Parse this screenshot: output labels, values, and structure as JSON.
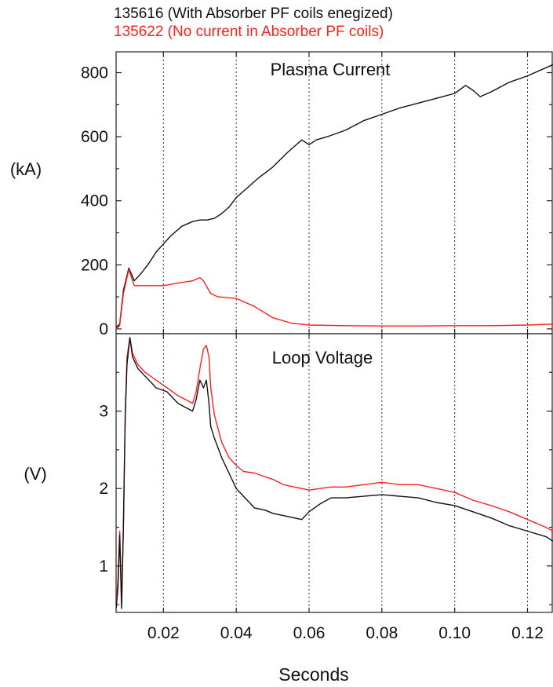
{
  "legend": [
    {
      "label": "135616 (With Absorber PF coils enegized)",
      "color": "#111111"
    },
    {
      "label": "135622 (No current in Absorber PF coils)",
      "color": "#ff2020"
    }
  ],
  "chart_data": [
    {
      "type": "line",
      "title": "Plasma Current",
      "ylabel": "(kA)",
      "xlim": [
        0.007,
        0.127
      ],
      "ylim": [
        -15,
        865
      ],
      "yticks": [
        0,
        200,
        400,
        600,
        800
      ],
      "x_gridlines": [
        0.02,
        0.04,
        0.06,
        0.08,
        0.1,
        0.12
      ],
      "grid": "vertical dotted",
      "series": [
        {
          "name": "135616",
          "color": "#111111",
          "x": [
            0.007,
            0.008,
            0.009,
            0.0105,
            0.012,
            0.014,
            0.016,
            0.018,
            0.02,
            0.022,
            0.025,
            0.028,
            0.03,
            0.032,
            0.034,
            0.036,
            0.038,
            0.04,
            0.043,
            0.046,
            0.05,
            0.054,
            0.058,
            0.06,
            0.062,
            0.065,
            0.07,
            0.075,
            0.08,
            0.085,
            0.09,
            0.095,
            0.1,
            0.103,
            0.105,
            0.107,
            0.11,
            0.115,
            0.12,
            0.127
          ],
          "y": [
            5,
            15,
            120,
            190,
            150,
            175,
            205,
            240,
            265,
            290,
            320,
            335,
            340,
            340,
            345,
            360,
            380,
            410,
            440,
            470,
            505,
            550,
            590,
            575,
            590,
            600,
            620,
            650,
            670,
            690,
            705,
            720,
            735,
            760,
            745,
            725,
            740,
            770,
            790,
            825
          ]
        },
        {
          "name": "135622",
          "color": "#ff2020",
          "x": [
            0.007,
            0.008,
            0.009,
            0.0105,
            0.012,
            0.015,
            0.02,
            0.025,
            0.028,
            0.03,
            0.031,
            0.033,
            0.035,
            0.04,
            0.045,
            0.05,
            0.055,
            0.06,
            0.07,
            0.08,
            0.09,
            0.1,
            0.11,
            0.12,
            0.127
          ],
          "y": [
            0,
            10,
            110,
            185,
            135,
            135,
            135,
            145,
            150,
            160,
            150,
            110,
            100,
            95,
            70,
            35,
            18,
            12,
            10,
            9,
            9,
            10,
            10,
            12,
            15
          ]
        }
      ]
    },
    {
      "type": "line",
      "title": "Loop Voltage",
      "ylabel": "(V)",
      "xlabel": "Seconds",
      "xlim": [
        0.007,
        0.127
      ],
      "ylim": [
        0.4,
        4.0
      ],
      "yticks": [
        1,
        2,
        3
      ],
      "xticks": [
        "0.02",
        "0.04",
        "0.06",
        "0.08",
        "0.10",
        "0.12"
      ],
      "x_gridlines": [
        0.02,
        0.04,
        0.06,
        0.08,
        0.1,
        0.12
      ],
      "grid": "vertical dotted",
      "series": [
        {
          "name": "135616",
          "color": "#111111",
          "x": [
            0.007,
            0.0075,
            0.008,
            0.0085,
            0.009,
            0.0095,
            0.01,
            0.0108,
            0.0115,
            0.013,
            0.015,
            0.018,
            0.021,
            0.024,
            0.026,
            0.028,
            0.029,
            0.03,
            0.031,
            0.0318,
            0.0325,
            0.033,
            0.034,
            0.036,
            0.038,
            0.04,
            0.042,
            0.045,
            0.048,
            0.05,
            0.053,
            0.056,
            0.058,
            0.06,
            0.063,
            0.066,
            0.07,
            0.075,
            0.08,
            0.085,
            0.09,
            0.095,
            0.1,
            0.105,
            0.11,
            0.115,
            0.12,
            0.125,
            0.127
          ],
          "y": [
            0.45,
            0.7,
            1.4,
            0.45,
            1.5,
            2.9,
            3.6,
            3.95,
            3.7,
            3.55,
            3.45,
            3.3,
            3.25,
            3.1,
            3.05,
            3.0,
            3.15,
            3.4,
            3.3,
            3.4,
            3.1,
            2.8,
            2.65,
            2.4,
            2.2,
            2.0,
            1.9,
            1.75,
            1.72,
            1.68,
            1.65,
            1.62,
            1.6,
            1.7,
            1.8,
            1.88,
            1.88,
            1.9,
            1.92,
            1.9,
            1.88,
            1.82,
            1.78,
            1.7,
            1.62,
            1.52,
            1.45,
            1.38,
            1.32
          ]
        },
        {
          "name": "135622",
          "color": "#ff2020",
          "x": [
            0.007,
            0.0075,
            0.008,
            0.0085,
            0.009,
            0.0095,
            0.01,
            0.0108,
            0.0115,
            0.013,
            0.015,
            0.018,
            0.021,
            0.024,
            0.026,
            0.028,
            0.029,
            0.03,
            0.031,
            0.0318,
            0.0325,
            0.033,
            0.034,
            0.036,
            0.038,
            0.04,
            0.042,
            0.045,
            0.048,
            0.05,
            0.053,
            0.056,
            0.058,
            0.06,
            0.063,
            0.066,
            0.07,
            0.075,
            0.08,
            0.085,
            0.09,
            0.095,
            0.1,
            0.105,
            0.11,
            0.115,
            0.12,
            0.125,
            0.127
          ],
          "y": [
            0.5,
            0.8,
            1.45,
            0.5,
            1.5,
            2.95,
            3.7,
            3.95,
            3.75,
            3.6,
            3.5,
            3.4,
            3.3,
            3.2,
            3.15,
            3.1,
            3.25,
            3.55,
            3.8,
            3.85,
            3.7,
            3.3,
            2.95,
            2.6,
            2.4,
            2.3,
            2.22,
            2.2,
            2.15,
            2.12,
            2.05,
            2.02,
            2.0,
            1.98,
            2.0,
            2.02,
            2.02,
            2.05,
            2.08,
            2.05,
            2.05,
            2.0,
            1.95,
            1.85,
            1.78,
            1.7,
            1.6,
            1.5,
            1.45
          ]
        }
      ]
    }
  ]
}
